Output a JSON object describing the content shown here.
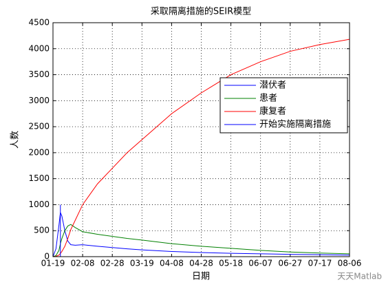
{
  "chart_data": {
    "type": "line",
    "title": "采取隔离措施的SEIR模型",
    "xlabel": "日期",
    "ylabel": "人数",
    "x": [
      0,
      2,
      4,
      5,
      6,
      8,
      10,
      12,
      15,
      20,
      30,
      40,
      50,
      60,
      80,
      100,
      120,
      140,
      160,
      180,
      200
    ],
    "series": [
      {
        "name": "潜伏者",
        "color": "#0000ff",
        "values": [
          0,
          150,
          600,
          850,
          780,
          500,
          300,
          230,
          220,
          230,
          200,
          175,
          150,
          130,
          100,
          80,
          65,
          55,
          45,
          38,
          30
        ]
      },
      {
        "name": "患者",
        "color": "#008000",
        "values": [
          0,
          20,
          120,
          250,
          350,
          500,
          590,
          620,
          560,
          480,
          430,
          390,
          350,
          320,
          250,
          200,
          160,
          120,
          90,
          70,
          55
        ]
      },
      {
        "name": "康复者",
        "color": "#ff0000",
        "values": [
          0,
          5,
          30,
          60,
          100,
          200,
          350,
          520,
          700,
          1000,
          1400,
          1700,
          2000,
          2250,
          2750,
          3150,
          3500,
          3750,
          3950,
          4080,
          4180
        ]
      },
      {
        "name": "开始实施隔离措施",
        "color": "#0000ff",
        "x": [
          5,
          5
        ],
        "values": [
          0,
          1000
        ]
      }
    ],
    "xlim": [
      0,
      200
    ],
    "xticks": [
      {
        "value": 0,
        "label": "01-19"
      },
      {
        "value": 20,
        "label": "02-08"
      },
      {
        "value": 40,
        "label": "02-28"
      },
      {
        "value": 60,
        "label": "03-19"
      },
      {
        "value": 80,
        "label": "04-08"
      },
      {
        "value": 100,
        "label": "04-28"
      },
      {
        "value": 120,
        "label": "05-18"
      },
      {
        "value": 140,
        "label": "06-07"
      },
      {
        "value": 160,
        "label": "06-27"
      },
      {
        "value": 180,
        "label": "07-17"
      },
      {
        "value": 200,
        "label": "08-06"
      }
    ],
    "ylim": [
      0,
      4500
    ],
    "yticks": [
      0,
      500,
      1000,
      1500,
      2000,
      2500,
      3000,
      3500,
      4000,
      4500
    ],
    "grid": true,
    "legend": "northeast",
    "watermark": "天天Matlab"
  }
}
